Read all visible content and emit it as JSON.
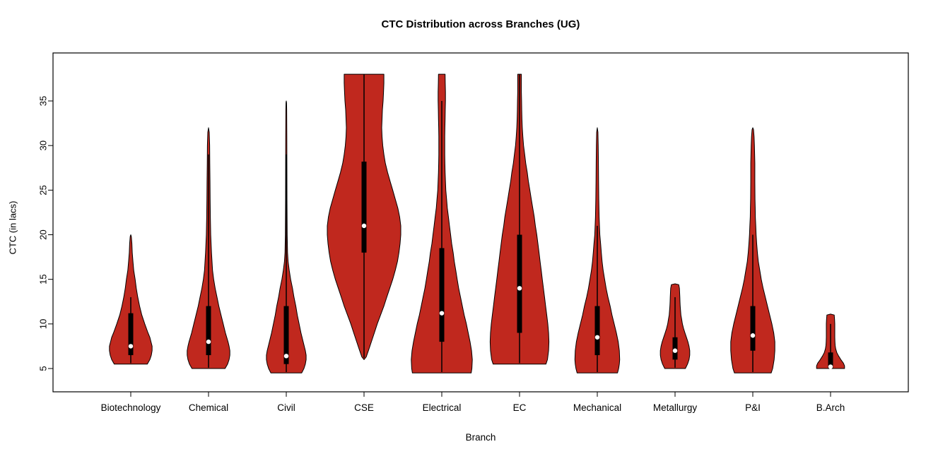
{
  "chart_data": {
    "type": "violin",
    "title": "CTC Distribution across Branches (UG)",
    "xlabel": "Branch",
    "ylabel": "CTC (in lacs)",
    "yticks": [
      5,
      10,
      15,
      20,
      25,
      30,
      35
    ],
    "ylim": [
      2.3,
      40.4
    ],
    "grid": false,
    "legend": "none",
    "colors": {
      "violin_fill": "#C0281E",
      "violin_stroke": "#000000",
      "box": "#000000",
      "median": "#ffffff",
      "axis": "#000000",
      "background": "#ffffff"
    },
    "categories": [
      "Biotechnology",
      "Chemical",
      "Civil",
      "CSE",
      "Electrical",
      "EC",
      "Mechanical",
      "Metallurgy",
      "P&I",
      "B.Arch"
    ],
    "series": [
      {
        "name": "Biotechnology",
        "min": 5.5,
        "max": 20,
        "q1": 6.5,
        "q3": 11.2,
        "median": 7.5,
        "whisker_low": 5.6,
        "whisker_high": 13,
        "shape": [
          [
            5.5,
            0.45
          ],
          [
            6,
            0.52
          ],
          [
            6.5,
            0.56
          ],
          [
            7,
            0.58
          ],
          [
            7.5,
            0.58
          ],
          [
            8,
            0.55
          ],
          [
            8.5,
            0.52
          ],
          [
            9,
            0.47
          ],
          [
            10,
            0.38
          ],
          [
            11,
            0.3
          ],
          [
            12,
            0.24
          ],
          [
            13,
            0.19
          ],
          [
            14,
            0.15
          ],
          [
            15,
            0.12
          ],
          [
            16,
            0.08
          ],
          [
            17,
            0.06
          ],
          [
            18,
            0.04
          ],
          [
            19,
            0.03
          ],
          [
            19.8,
            0.015
          ],
          [
            20,
            0.0
          ]
        ]
      },
      {
        "name": "Chemical",
        "min": 5,
        "max": 32,
        "q1": 6.5,
        "q3": 12,
        "median": 8,
        "whisker_low": 5.1,
        "whisker_high": 29,
        "shape": [
          [
            5,
            0.45
          ],
          [
            5.5,
            0.52
          ],
          [
            6,
            0.56
          ],
          [
            6.5,
            0.58
          ],
          [
            7,
            0.58
          ],
          [
            7.5,
            0.56
          ],
          [
            8,
            0.53
          ],
          [
            9,
            0.46
          ],
          [
            10,
            0.4
          ],
          [
            11,
            0.34
          ],
          [
            12,
            0.28
          ],
          [
            13,
            0.23
          ],
          [
            14,
            0.18
          ],
          [
            15,
            0.14
          ],
          [
            16,
            0.11
          ],
          [
            18,
            0.08
          ],
          [
            20,
            0.06
          ],
          [
            22,
            0.05
          ],
          [
            24,
            0.045
          ],
          [
            26,
            0.04
          ],
          [
            28,
            0.035
          ],
          [
            30,
            0.03
          ],
          [
            31.5,
            0.02
          ],
          [
            32,
            0.0
          ]
        ]
      },
      {
        "name": "Civil",
        "min": 4.5,
        "max": 35,
        "q1": 5.5,
        "q3": 12,
        "median": 6.4,
        "whisker_low": 4.6,
        "whisker_high": 29,
        "shape": [
          [
            4.5,
            0.42
          ],
          [
            5,
            0.48
          ],
          [
            5.5,
            0.52
          ],
          [
            6,
            0.54
          ],
          [
            6.5,
            0.54
          ],
          [
            7,
            0.52
          ],
          [
            8,
            0.46
          ],
          [
            9,
            0.4
          ],
          [
            10,
            0.35
          ],
          [
            11,
            0.3
          ],
          [
            12,
            0.26
          ],
          [
            13,
            0.21
          ],
          [
            14,
            0.17
          ],
          [
            15,
            0.12
          ],
          [
            16,
            0.08
          ],
          [
            17,
            0.05
          ],
          [
            18,
            0.035
          ],
          [
            20,
            0.025
          ],
          [
            24,
            0.02
          ],
          [
            28,
            0.018
          ],
          [
            31,
            0.015
          ],
          [
            34,
            0.012
          ],
          [
            34.8,
            0.008
          ],
          [
            35,
            0.0
          ]
        ]
      },
      {
        "name": "CSE",
        "min": 6,
        "max": 38,
        "q1": 18,
        "q3": 28.2,
        "median": 21,
        "whisker_low": 6.2,
        "whisker_high": 38,
        "shape": [
          [
            6,
            0.0
          ],
          [
            6.3,
            0.06
          ],
          [
            7,
            0.12
          ],
          [
            8,
            0.2
          ],
          [
            9,
            0.28
          ],
          [
            10,
            0.36
          ],
          [
            11,
            0.45
          ],
          [
            12,
            0.54
          ],
          [
            13,
            0.62
          ],
          [
            14,
            0.7
          ],
          [
            15,
            0.78
          ],
          [
            16,
            0.85
          ],
          [
            17,
            0.91
          ],
          [
            18,
            0.95
          ],
          [
            19,
            0.98
          ],
          [
            20,
            1.0
          ],
          [
            21,
            1.0
          ],
          [
            22,
            0.97
          ],
          [
            23,
            0.92
          ],
          [
            24,
            0.85
          ],
          [
            25,
            0.78
          ],
          [
            26,
            0.71
          ],
          [
            27,
            0.64
          ],
          [
            28,
            0.58
          ],
          [
            29,
            0.54
          ],
          [
            30,
            0.51
          ],
          [
            31,
            0.49
          ],
          [
            32,
            0.48
          ],
          [
            33,
            0.49
          ],
          [
            34,
            0.5
          ],
          [
            35,
            0.52
          ],
          [
            36,
            0.53
          ],
          [
            37,
            0.54
          ],
          [
            38,
            0.54
          ]
        ]
      },
      {
        "name": "Electrical",
        "min": 4.5,
        "max": 38,
        "q1": 8,
        "q3": 18.5,
        "median": 11.2,
        "whisker_low": 4.6,
        "whisker_high": 35,
        "shape": [
          [
            4.5,
            0.8
          ],
          [
            5,
            0.82
          ],
          [
            6,
            0.83
          ],
          [
            7,
            0.81
          ],
          [
            8,
            0.77
          ],
          [
            9,
            0.72
          ],
          [
            10,
            0.67
          ],
          [
            11,
            0.61
          ],
          [
            12,
            0.56
          ],
          [
            13,
            0.51
          ],
          [
            14,
            0.46
          ],
          [
            15,
            0.42
          ],
          [
            16,
            0.38
          ],
          [
            17,
            0.34
          ],
          [
            18,
            0.31
          ],
          [
            19,
            0.27
          ],
          [
            20,
            0.24
          ],
          [
            21,
            0.21
          ],
          [
            22,
            0.18
          ],
          [
            23,
            0.15
          ],
          [
            24,
            0.13
          ],
          [
            25,
            0.11
          ],
          [
            26,
            0.1
          ],
          [
            27,
            0.09
          ],
          [
            28,
            0.085
          ],
          [
            29,
            0.08
          ],
          [
            30,
            0.08
          ],
          [
            31,
            0.08
          ],
          [
            32,
            0.085
          ],
          [
            33,
            0.09
          ],
          [
            34,
            0.095
          ],
          [
            35,
            0.1
          ],
          [
            36,
            0.1
          ],
          [
            37,
            0.095
          ],
          [
            38,
            0.09
          ]
        ]
      },
      {
        "name": "EC",
        "min": 5.5,
        "max": 38,
        "q1": 9,
        "q3": 20,
        "median": 14,
        "whisker_low": 5.6,
        "whisker_high": 38,
        "shape": [
          [
            5.5,
            0.72
          ],
          [
            6,
            0.76
          ],
          [
            7,
            0.79
          ],
          [
            8,
            0.8
          ],
          [
            9,
            0.79
          ],
          [
            10,
            0.77
          ],
          [
            11,
            0.74
          ],
          [
            12,
            0.71
          ],
          [
            13,
            0.68
          ],
          [
            14,
            0.65
          ],
          [
            15,
            0.62
          ],
          [
            16,
            0.59
          ],
          [
            17,
            0.56
          ],
          [
            18,
            0.53
          ],
          [
            19,
            0.5
          ],
          [
            20,
            0.47
          ],
          [
            21,
            0.43
          ],
          [
            22,
            0.4
          ],
          [
            23,
            0.36
          ],
          [
            24,
            0.32
          ],
          [
            25,
            0.28
          ],
          [
            26,
            0.24
          ],
          [
            27,
            0.21
          ],
          [
            28,
            0.17
          ],
          [
            29,
            0.14
          ],
          [
            30,
            0.11
          ],
          [
            31,
            0.09
          ],
          [
            32,
            0.075
          ],
          [
            33,
            0.065
          ],
          [
            34,
            0.06
          ],
          [
            35,
            0.055
          ],
          [
            36,
            0.05
          ],
          [
            37,
            0.05
          ],
          [
            38,
            0.05
          ]
        ]
      },
      {
        "name": "Mechanical",
        "min": 4.5,
        "max": 32,
        "q1": 6.5,
        "q3": 12,
        "median": 8.5,
        "whisker_low": 4.6,
        "whisker_high": 21,
        "shape": [
          [
            4.5,
            0.55
          ],
          [
            5,
            0.58
          ],
          [
            5.5,
            0.6
          ],
          [
            6,
            0.61
          ],
          [
            7,
            0.6
          ],
          [
            8,
            0.57
          ],
          [
            9,
            0.52
          ],
          [
            10,
            0.46
          ],
          [
            11,
            0.4
          ],
          [
            12,
            0.35
          ],
          [
            13,
            0.29
          ],
          [
            14,
            0.24
          ],
          [
            15,
            0.2
          ],
          [
            16,
            0.16
          ],
          [
            17,
            0.13
          ],
          [
            18,
            0.11
          ],
          [
            19,
            0.09
          ],
          [
            20,
            0.07
          ],
          [
            21,
            0.06
          ],
          [
            22,
            0.05
          ],
          [
            24,
            0.04
          ],
          [
            26,
            0.035
          ],
          [
            28,
            0.03
          ],
          [
            30,
            0.025
          ],
          [
            31.5,
            0.018
          ],
          [
            32,
            0.0
          ]
        ]
      },
      {
        "name": "Metallurgy",
        "min": 5,
        "max": 14.5,
        "q1": 6,
        "q3": 8.5,
        "median": 7,
        "whisker_low": 5.1,
        "whisker_high": 13,
        "shape": [
          [
            5,
            0.28
          ],
          [
            5.5,
            0.34
          ],
          [
            6,
            0.38
          ],
          [
            6.5,
            0.4
          ],
          [
            7,
            0.4
          ],
          [
            7.5,
            0.38
          ],
          [
            8,
            0.35
          ],
          [
            8.5,
            0.31
          ],
          [
            9,
            0.27
          ],
          [
            9.5,
            0.23
          ],
          [
            10,
            0.2
          ],
          [
            10.5,
            0.18
          ],
          [
            11,
            0.16
          ],
          [
            11.5,
            0.15
          ],
          [
            12,
            0.14
          ],
          [
            12.5,
            0.135
          ],
          [
            13,
            0.13
          ],
          [
            13.5,
            0.125
          ],
          [
            14,
            0.12
          ],
          [
            14.4,
            0.1
          ],
          [
            14.5,
            0.0
          ]
        ]
      },
      {
        "name": "P&I",
        "min": 4.5,
        "max": 32,
        "q1": 7,
        "q3": 12,
        "median": 8.7,
        "whisker_low": 4.6,
        "whisker_high": 20,
        "shape": [
          [
            4.5,
            0.5
          ],
          [
            5,
            0.54
          ],
          [
            6,
            0.58
          ],
          [
            7,
            0.6
          ],
          [
            8,
            0.6
          ],
          [
            9,
            0.57
          ],
          [
            10,
            0.52
          ],
          [
            11,
            0.46
          ],
          [
            12,
            0.4
          ],
          [
            13,
            0.34
          ],
          [
            14,
            0.28
          ],
          [
            15,
            0.23
          ],
          [
            16,
            0.19
          ],
          [
            17,
            0.15
          ],
          [
            18,
            0.125
          ],
          [
            19,
            0.105
          ],
          [
            20,
            0.09
          ],
          [
            21,
            0.08
          ],
          [
            22,
            0.07
          ],
          [
            23,
            0.065
          ],
          [
            24,
            0.06
          ],
          [
            25,
            0.058
          ],
          [
            26,
            0.056
          ],
          [
            27,
            0.055
          ],
          [
            28,
            0.055
          ],
          [
            29,
            0.05
          ],
          [
            30,
            0.045
          ],
          [
            31,
            0.035
          ],
          [
            31.8,
            0.02
          ],
          [
            32,
            0.0
          ]
        ]
      },
      {
        "name": "B.Arch",
        "min": 5,
        "max": 11.1,
        "q1": 5,
        "q3": 6.8,
        "median": 5.2,
        "whisker_low": 5,
        "whisker_high": 10,
        "shape": [
          [
            5,
            0.38
          ],
          [
            5.3,
            0.38
          ],
          [
            5.6,
            0.35
          ],
          [
            6,
            0.28
          ],
          [
            6.4,
            0.22
          ],
          [
            6.8,
            0.17
          ],
          [
            7.2,
            0.14
          ],
          [
            7.6,
            0.125
          ],
          [
            8,
            0.12
          ],
          [
            8.5,
            0.115
          ],
          [
            9,
            0.115
          ],
          [
            9.5,
            0.115
          ],
          [
            10,
            0.115
          ],
          [
            10.5,
            0.11
          ],
          [
            11,
            0.1
          ],
          [
            11.1,
            0.0
          ]
        ]
      }
    ]
  }
}
